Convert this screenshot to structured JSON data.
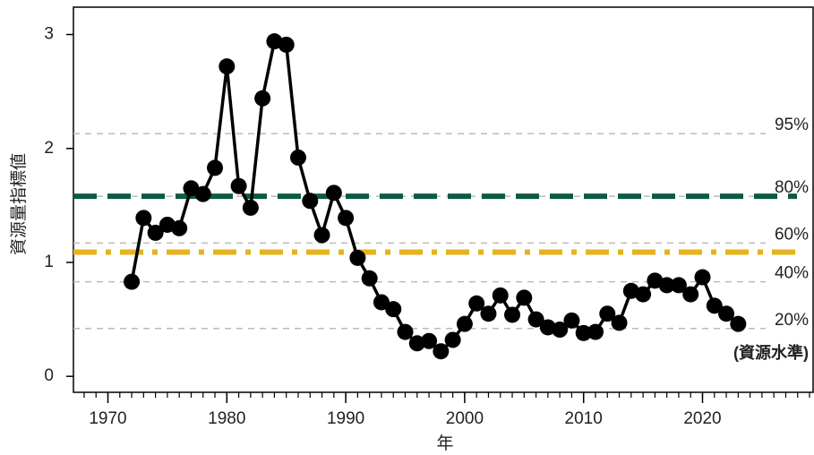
{
  "chart_data": {
    "type": "line",
    "ylabel": "資源量指標値",
    "xlabel": "年",
    "annotation": "(資源水準)",
    "x": [
      1972,
      1973,
      1974,
      1975,
      1976,
      1977,
      1978,
      1979,
      1980,
      1981,
      1982,
      1983,
      1984,
      1985,
      1986,
      1987,
      1988,
      1989,
      1990,
      1991,
      1992,
      1993,
      1994,
      1995,
      1996,
      1997,
      1998,
      1999,
      2000,
      2001,
      2002,
      2003,
      2004,
      2005,
      2006,
      2007,
      2008,
      2009,
      2010,
      2011,
      2012,
      2013,
      2014,
      2015,
      2016,
      2017,
      2018,
      2019,
      2020,
      2021,
      2022,
      2023
    ],
    "values": [
      0.83,
      1.39,
      1.26,
      1.33,
      1.3,
      1.65,
      1.6,
      1.83,
      2.72,
      1.67,
      1.48,
      2.44,
      2.94,
      2.91,
      1.92,
      1.54,
      1.24,
      1.61,
      1.39,
      1.04,
      0.86,
      0.65,
      0.59,
      0.39,
      0.29,
      0.31,
      0.22,
      0.32,
      0.46,
      0.64,
      0.55,
      0.71,
      0.54,
      0.69,
      0.5,
      0.43,
      0.41,
      0.49,
      0.38,
      0.39,
      0.55,
      0.47,
      0.75,
      0.72,
      0.84,
      0.8,
      0.8,
      0.72,
      0.87,
      0.62,
      0.55,
      0.46
    ],
    "color": "#000000",
    "xlim": [
      1967.1,
      2029.3
    ],
    "xticks": [
      1970,
      1980,
      1990,
      2000,
      2010,
      2020
    ],
    "ylim": [
      -0.14,
      3.24
    ],
    "yticks": [
      0,
      1,
      2,
      3
    ],
    "percentile_lines": [
      {
        "label": "95%",
        "value": 2.13
      },
      {
        "label": "80%",
        "value": 1.58
      },
      {
        "label": "60%",
        "value": 1.17
      },
      {
        "label": "40%",
        "value": 0.83
      },
      {
        "label": "20%",
        "value": 0.42
      }
    ],
    "percentile_color": "#bbbbbb",
    "limit_lines": [
      {
        "value": 1.58,
        "color": "#0b5a45",
        "style": "dash"
      },
      {
        "value": 1.09,
        "color": "#e6b31e",
        "style": "dashdot"
      }
    ]
  }
}
